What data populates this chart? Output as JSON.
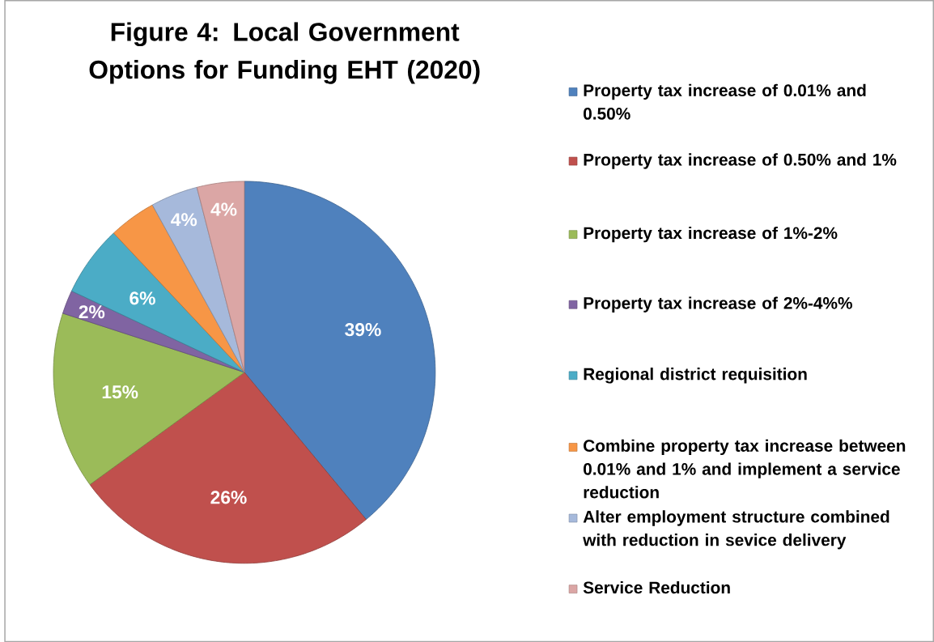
{
  "chart_data": {
    "type": "pie",
    "title": "Figure 4: Local Government Options for Funding EHT (2020)",
    "categories": [
      "Property tax increase of 0.01% and 0.50%",
      "Property tax increase of 0.50% and 1%",
      "Property tax increase of 1%-2%",
      "Property tax increase of 2%-4%%",
      "Regional district requisition",
      "Combine property tax increase between 0.01% and 1% and implement a service reduction",
      "Alter employment structure combined with reduction in sevice delivery",
      "Service Reduction"
    ],
    "values": [
      39,
      26,
      15,
      2,
      6,
      4,
      4,
      4
    ],
    "value_labels": [
      "39%",
      "26%",
      "15%",
      "2%",
      "6%",
      null,
      "4%",
      "4%"
    ],
    "colors": [
      "#4f81bd",
      "#c0504d",
      "#9bbb59",
      "#8064a2",
      "#4bacc6",
      "#f79646",
      "#a6b9db",
      "#dba6a5"
    ],
    "legend": "right"
  }
}
